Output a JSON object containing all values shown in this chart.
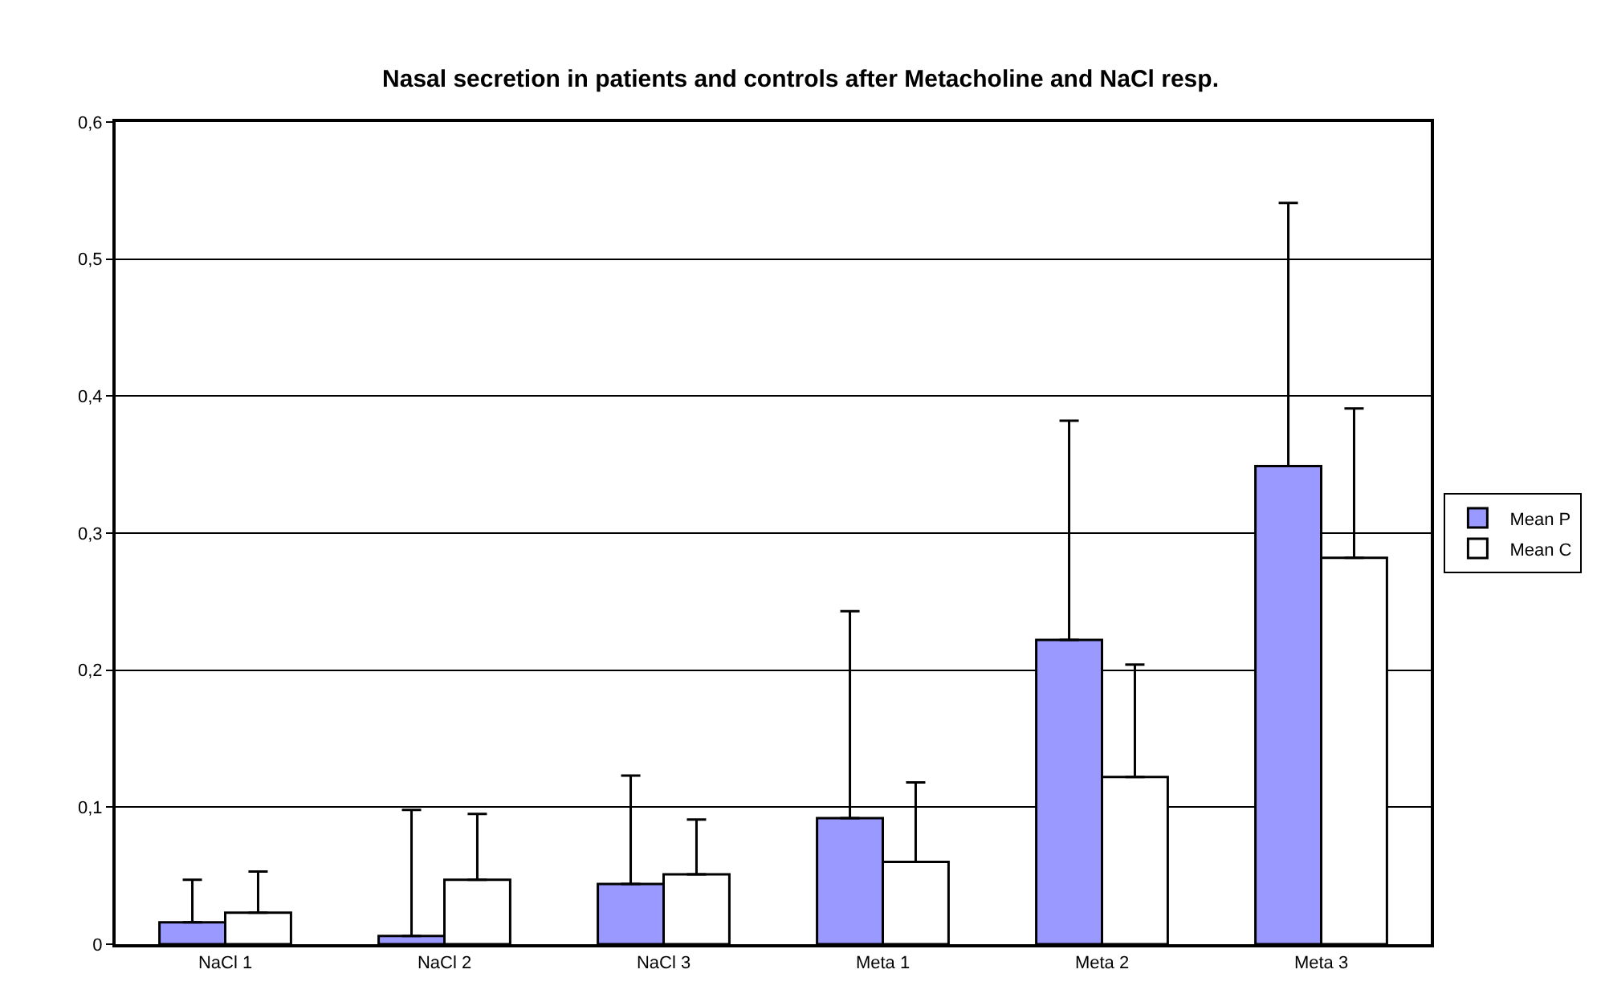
{
  "chart_data": {
    "type": "bar",
    "title": "Nasal secretion in patients and controls after Metacholine and NaCl resp.",
    "categories": [
      "NaCl 1",
      "NaCl 2",
      "NaCl 3",
      "Meta 1",
      "Meta 2",
      "Meta 3"
    ],
    "series": [
      {
        "name": "Mean P",
        "color": "#9999ff",
        "values": [
          0.016,
          0.006,
          0.044,
          0.092,
          0.222,
          0.349
        ],
        "errors": [
          [
            0.016,
            0.047
          ],
          [
            0.006,
            0.098
          ],
          [
            0.044,
            0.123
          ],
          [
            0.092,
            0.243
          ],
          [
            0.222,
            0.382
          ],
          [
            0.349,
            0.541
          ]
        ]
      },
      {
        "name": "Mean C",
        "color": "#ffffff",
        "values": [
          0.023,
          0.047,
          0.051,
          0.06,
          0.122,
          0.282
        ],
        "errors": [
          [
            0.023,
            0.053
          ],
          [
            0.047,
            0.095
          ],
          [
            0.051,
            0.091
          ],
          [
            0.06,
            0.118
          ],
          [
            0.122,
            0.204
          ],
          [
            0.282,
            0.391
          ]
        ]
      }
    ],
    "ylim": [
      0,
      0.6
    ],
    "yticks": [
      {
        "value": 0,
        "label": "0"
      },
      {
        "value": 0.1,
        "label": "0,1"
      },
      {
        "value": 0.2,
        "label": "0,2"
      },
      {
        "value": 0.3,
        "label": "0,3"
      },
      {
        "value": 0.4,
        "label": "0,4"
      },
      {
        "value": 0.5,
        "label": "0,5"
      },
      {
        "value": 0.6,
        "label": "0,6"
      }
    ],
    "grid": "y",
    "legend": "right"
  }
}
